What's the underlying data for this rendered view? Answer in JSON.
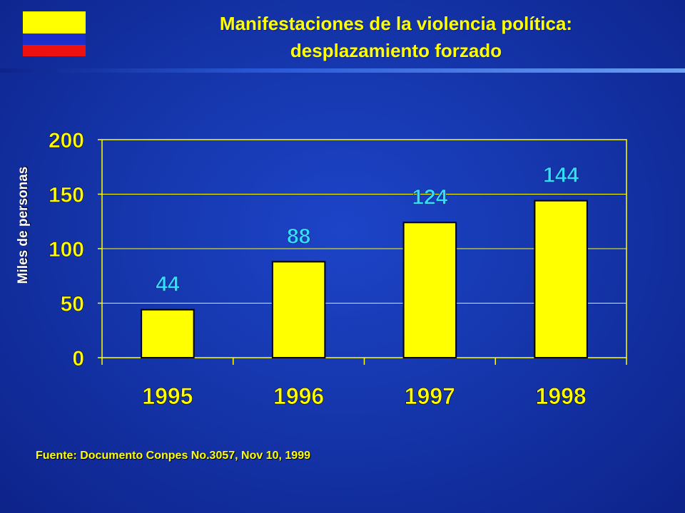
{
  "header": {
    "title_line1": "Manifestaciones de la violencia política:",
    "title_line2": "desplazamiento forzado"
  },
  "flag": {
    "stripes": [
      "#ffff00",
      "#1a2ecc",
      "#ee1111"
    ]
  },
  "colors": {
    "title": "#ffff00",
    "bar": "#ffff00",
    "data_label": "#33ddff",
    "tick_label": "#ffff00",
    "grid": "#ffff00"
  },
  "chart_data": {
    "type": "bar",
    "categories": [
      "1995",
      "1996",
      "1997",
      "1998"
    ],
    "values": [
      44,
      88,
      124,
      144
    ],
    "data_labels": [
      "44",
      "88",
      "124",
      "144"
    ],
    "yticks": [
      "0",
      "50",
      "100",
      "150",
      "200"
    ],
    "ylabel": "Miles de personas",
    "xlabel": "",
    "ylim": [
      0,
      200
    ],
    "grid": true
  },
  "footer": {
    "source": "Fuente: Documento Conpes No.3057, Nov 10, 1999"
  }
}
